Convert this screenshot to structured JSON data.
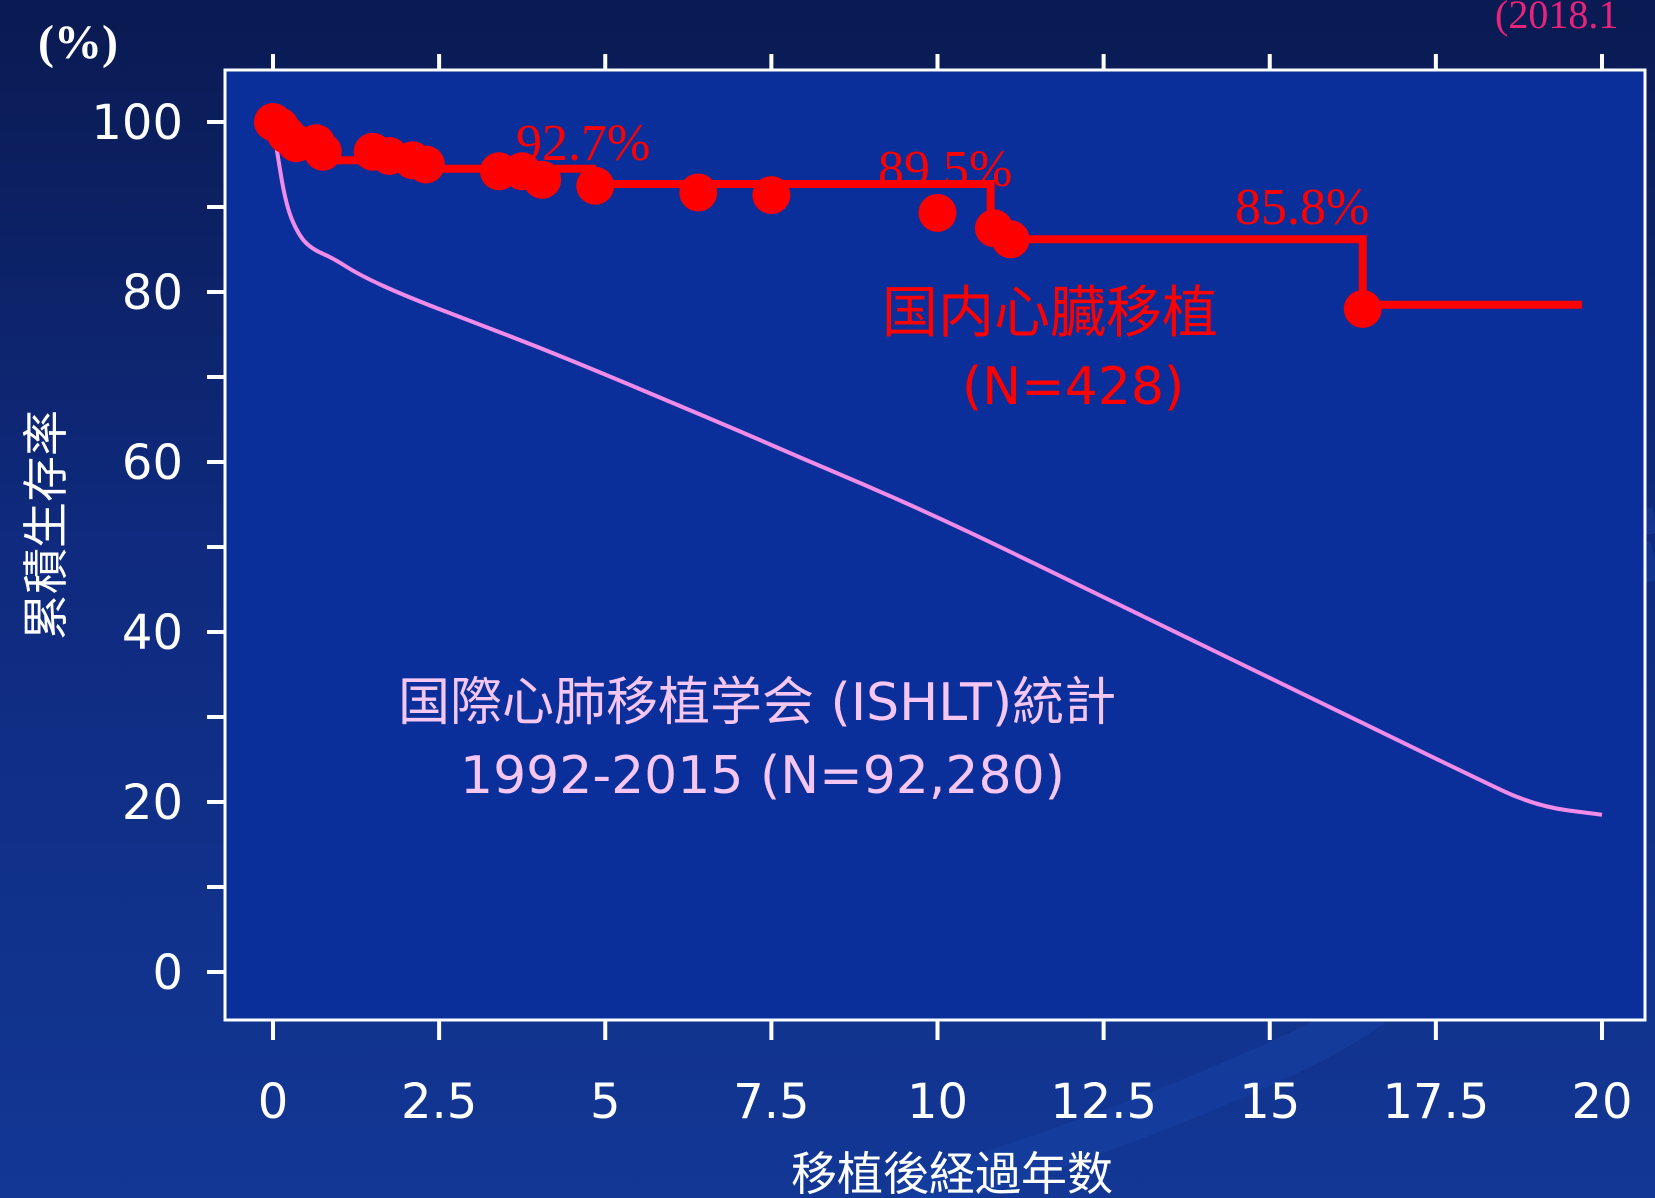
{
  "chart_data": {
    "type": "line",
    "y_unit": "(%)",
    "corner_note": "(2018.1",
    "ylabel": "累積生存率",
    "xlabel": "移植後経過年数",
    "xlim": [
      0,
      20
    ],
    "ylim": [
      0,
      100
    ],
    "x_ticks": [
      "0",
      "2.5",
      "5",
      "7.5",
      "10",
      "12.5",
      "15",
      "17.5",
      "20"
    ],
    "y_ticks": [
      "0",
      "20",
      "40",
      "60",
      "80",
      "100"
    ],
    "colors": {
      "domestic": "#ff0000",
      "ishlt": "#f08ce8",
      "plot_bg": "#0a2f9b",
      "text": "#ffffff"
    },
    "series": [
      {
        "name": "国内心臓移植",
        "name_sub": "(N=428)",
        "step": true,
        "line_x": [
          0,
          0.3,
          0.3,
          0.75,
          0.75,
          2.3,
          2.3,
          4.8,
          4.8,
          10.8,
          10.8,
          16.4,
          16.4,
          19.7
        ],
        "line_y": [
          100,
          100,
          97,
          97,
          95.5,
          95.5,
          94.5,
          94.5,
          92.7,
          92.7,
          86.2,
          86.2,
          78.5,
          78.5
        ],
        "points_x": [
          0.0,
          0.1,
          0.2,
          0.35,
          0.65,
          0.75,
          1.5,
          1.75,
          2.1,
          2.3,
          3.4,
          3.75,
          4.05,
          4.85,
          6.4,
          7.5,
          10.0,
          10.85,
          11.1,
          16.4
        ],
        "points_y": [
          100,
          99.5,
          98.5,
          97.5,
          97.5,
          96.5,
          96.5,
          96,
          95.5,
          95,
          94.2,
          94.2,
          93.2,
          92.5,
          91.7,
          91.4,
          89.3,
          87.5,
          86.2,
          78.0
        ]
      },
      {
        "name": "国際心肺移植学会 (ISHLT)統計",
        "name_sub": "1992-2015 (N=92,280)",
        "step": false,
        "line_x": [
          0.0,
          0.05,
          0.2,
          0.4,
          0.6,
          0.9,
          1.3,
          2.0,
          3.0,
          4.0,
          5.0,
          6.0,
          7.0,
          8.0,
          9.0,
          10.0,
          11.0,
          12.0,
          13.0,
          14.0,
          15.0,
          16.0,
          17.0,
          18.0,
          19.0,
          20.0
        ],
        "line_y": [
          100,
          97,
          90,
          86.5,
          85,
          84,
          82,
          79.5,
          76.5,
          73.5,
          70.3,
          67,
          63.7,
          60.3,
          57,
          53.5,
          49.8,
          46,
          42.2,
          38.4,
          34.6,
          30.8,
          27,
          23.2,
          19.5,
          18.5
        ]
      }
    ],
    "annotations": [
      "92.7%",
      "89.5%",
      "85.8%"
    ]
  }
}
